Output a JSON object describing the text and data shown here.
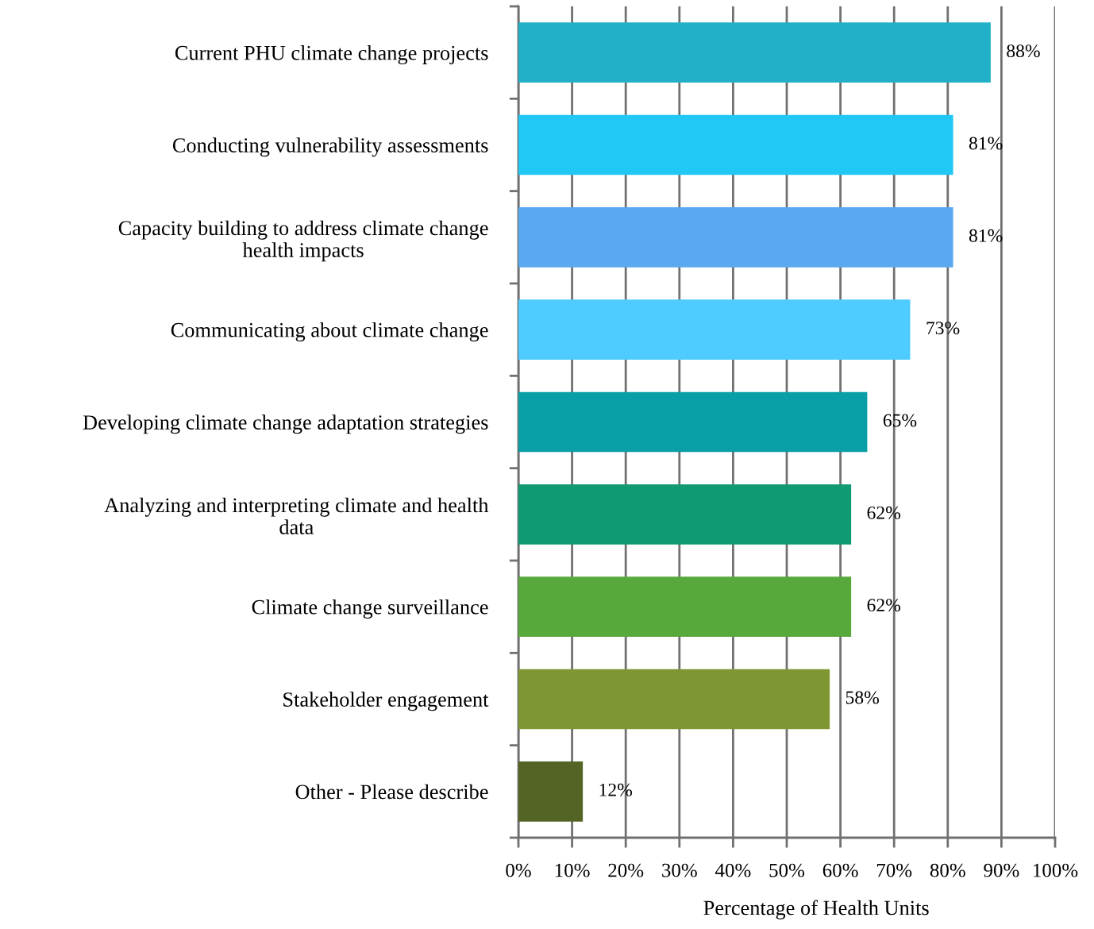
{
  "chart_data": {
    "type": "bar",
    "orientation": "horizontal",
    "categories": [
      "Current PHU climate change projects",
      "Conducting vulnerability assessments",
      "Capacity building to address climate change\nhealth impacts",
      "Communicating about climate change",
      "Developing climate change adaptation strategies",
      "Analyzing and interpreting climate and health\ndata",
      "Climate change surveillance",
      "Stakeholder engagement",
      "Other - Please describe"
    ],
    "values": [
      88,
      81,
      81,
      73,
      65,
      62,
      62,
      58,
      12
    ],
    "colors": [
      "#22b0c8",
      "#22c8f5",
      "#5aa9f0",
      "#4ecbff",
      "#0a9ea6",
      "#109a74",
      "#58a83c",
      "#7f9733",
      "#536424"
    ],
    "value_labels": [
      "88%",
      "81%",
      "81%",
      "73%",
      "65%",
      "62%",
      "62%",
      "58%",
      "12%"
    ],
    "xlim": [
      0,
      100
    ],
    "xticks": [
      {
        "value": 0,
        "label": "0%"
      },
      {
        "value": 10,
        "label": "10%"
      },
      {
        "value": 20,
        "label": "20%"
      },
      {
        "value": 30,
        "label": "30%"
      },
      {
        "value": 40,
        "label": "40%"
      },
      {
        "value": 50,
        "label": "50%"
      },
      {
        "value": 60,
        "label": "60%"
      },
      {
        "value": 70,
        "label": "70%"
      },
      {
        "value": 80,
        "label": "80%"
      },
      {
        "value": 90,
        "label": "90%"
      },
      {
        "value": 100,
        "label": "100%"
      }
    ],
    "xlabel": "Percentage of Health Units",
    "grid": "x"
  }
}
